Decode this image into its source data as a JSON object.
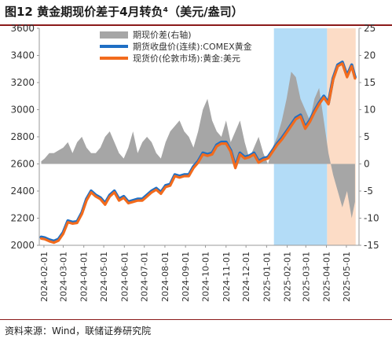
{
  "header": {
    "title": "图12 黄金期现价差于4月转负⁴（美元/盎司）"
  },
  "footer": {
    "source": "资料来源：Wind，联储证券研究院"
  },
  "chart_data": {
    "type": "line",
    "title": "图12 黄金期现价差于4月转负⁴（美元/盎司）",
    "xlabel": "",
    "ylabel": "",
    "x_range": [
      "2024-01-25",
      "2025-05-20"
    ],
    "y_left": {
      "range": [
        2000,
        3600
      ],
      "ticks": [
        2000,
        2200,
        2400,
        2600,
        2800,
        3000,
        3200,
        3400,
        3600
      ]
    },
    "y_right": {
      "range": [
        -15,
        25
      ],
      "ticks": [
        -15,
        -10,
        -5,
        0,
        5,
        10,
        15,
        20,
        25
      ]
    },
    "x_ticks": [
      "2024-02-01",
      "2024-03-01",
      "2024-04-01",
      "2024-05-01",
      "2024-06-01",
      "2024-07-01",
      "2024-08-01",
      "2024-09-01",
      "2024-10-01",
      "2024-11-01",
      "2024-12-01",
      "2025-01-01",
      "2025-02-01",
      "2025-03-01",
      "2025-04-01",
      "2025-05-01"
    ],
    "shaded_regions": [
      {
        "start": "2025-01-12",
        "end": "2025-04-02",
        "color": "#b3dcf7"
      },
      {
        "start": "2025-04-02",
        "end": "2025-05-15",
        "color": "#fcdcc6"
      }
    ],
    "legend_position": "top-center",
    "series": [
      {
        "name": "期现价差(右轴)",
        "type": "area",
        "axis": "right",
        "color": "#a6a6a6",
        "x": [
          "2024-01-28",
          "2024-02-02",
          "2024-02-09",
          "2024-02-16",
          "2024-02-23",
          "2024-03-01",
          "2024-03-08",
          "2024-03-15",
          "2024-03-22",
          "2024-03-29",
          "2024-04-05",
          "2024-04-12",
          "2024-04-19",
          "2024-04-26",
          "2024-05-03",
          "2024-05-10",
          "2024-05-17",
          "2024-05-24",
          "2024-05-31",
          "2024-06-07",
          "2024-06-14",
          "2024-06-21",
          "2024-06-28",
          "2024-07-05",
          "2024-07-12",
          "2024-07-19",
          "2024-07-26",
          "2024-08-02",
          "2024-08-09",
          "2024-08-16",
          "2024-08-23",
          "2024-08-30",
          "2024-09-06",
          "2024-09-13",
          "2024-09-20",
          "2024-09-27",
          "2024-10-04",
          "2024-10-11",
          "2024-10-18",
          "2024-10-25",
          "2024-11-01",
          "2024-11-08",
          "2024-11-15",
          "2024-11-22",
          "2024-11-29",
          "2024-12-06",
          "2024-12-13",
          "2024-12-20",
          "2024-12-27",
          "2025-01-03",
          "2025-01-10",
          "2025-01-17",
          "2025-01-24",
          "2025-01-31",
          "2025-02-07",
          "2025-02-14",
          "2025-02-21",
          "2025-02-28",
          "2025-03-07",
          "2025-03-14",
          "2025-03-21",
          "2025-03-28",
          "2025-04-04",
          "2025-04-11",
          "2025-04-18",
          "2025-04-25",
          "2025-05-02",
          "2025-05-09",
          "2025-05-14"
        ],
        "values": [
          0.5,
          1,
          2,
          2,
          2.5,
          3,
          4,
          2,
          4,
          5,
          3,
          2,
          2,
          3,
          5,
          6,
          4,
          2,
          1,
          3,
          6,
          2,
          4,
          5,
          4,
          2,
          1,
          4,
          6,
          7,
          8,
          6,
          5,
          3,
          6,
          10,
          12,
          8,
          6,
          5,
          8,
          4,
          6,
          8,
          4,
          1,
          3,
          5,
          2,
          0,
          3,
          5,
          8,
          12,
          17,
          16,
          12,
          10,
          8,
          12,
          14,
          8,
          2,
          -2,
          -5,
          -8,
          -5,
          -10,
          -7
        ]
      },
      {
        "name": "期货收盘价(连续):COMEX黄金",
        "type": "line",
        "axis": "left",
        "color": "#1f6fc4",
        "x": [
          "2024-01-28",
          "2024-02-02",
          "2024-02-09",
          "2024-02-16",
          "2024-02-23",
          "2024-03-01",
          "2024-03-08",
          "2024-03-15",
          "2024-03-22",
          "2024-03-29",
          "2024-04-05",
          "2024-04-12",
          "2024-04-19",
          "2024-04-26",
          "2024-05-03",
          "2024-05-10",
          "2024-05-17",
          "2024-05-24",
          "2024-05-31",
          "2024-06-07",
          "2024-06-14",
          "2024-06-21",
          "2024-06-28",
          "2024-07-05",
          "2024-07-12",
          "2024-07-19",
          "2024-07-26",
          "2024-08-02",
          "2024-08-09",
          "2024-08-16",
          "2024-08-23",
          "2024-08-30",
          "2024-09-06",
          "2024-09-13",
          "2024-09-20",
          "2024-09-27",
          "2024-10-04",
          "2024-10-11",
          "2024-10-18",
          "2024-10-25",
          "2024-11-01",
          "2024-11-08",
          "2024-11-15",
          "2024-11-22",
          "2024-11-29",
          "2024-12-06",
          "2024-12-13",
          "2024-12-20",
          "2024-12-27",
          "2025-01-03",
          "2025-01-10",
          "2025-01-17",
          "2025-01-24",
          "2025-01-31",
          "2025-02-07",
          "2025-02-14",
          "2025-02-21",
          "2025-02-28",
          "2025-03-07",
          "2025-03-14",
          "2025-03-21",
          "2025-03-28",
          "2025-04-04",
          "2025-04-11",
          "2025-04-18",
          "2025-04-25",
          "2025-05-02",
          "2025-05-09",
          "2025-05-14"
        ],
        "values": [
          2060,
          2055,
          2040,
          2030,
          2045,
          2095,
          2180,
          2170,
          2175,
          2240,
          2340,
          2400,
          2370,
          2350,
          2310,
          2370,
          2400,
          2340,
          2360,
          2320,
          2330,
          2340,
          2340,
          2370,
          2400,
          2420,
          2390,
          2440,
          2450,
          2520,
          2510,
          2520,
          2520,
          2580,
          2620,
          2680,
          2670,
          2680,
          2740,
          2760,
          2760,
          2700,
          2580,
          2680,
          2650,
          2660,
          2680,
          2620,
          2640,
          2650,
          2700,
          2750,
          2790,
          2840,
          2890,
          2940,
          2960,
          2870,
          2920,
          2990,
          3050,
          3100,
          3050,
          3230,
          3330,
          3350,
          3250,
          3330,
          3240
        ]
      },
      {
        "name": "现货价(伦敦市场):黄金:美元",
        "type": "line",
        "axis": "left",
        "color": "#f26b1d",
        "x": [
          "2024-01-28",
          "2024-02-02",
          "2024-02-09",
          "2024-02-16",
          "2024-02-23",
          "2024-03-01",
          "2024-03-08",
          "2024-03-15",
          "2024-03-22",
          "2024-03-29",
          "2024-04-05",
          "2024-04-12",
          "2024-04-19",
          "2024-04-26",
          "2024-05-03",
          "2024-05-10",
          "2024-05-17",
          "2024-05-24",
          "2024-05-31",
          "2024-06-07",
          "2024-06-14",
          "2024-06-21",
          "2024-06-28",
          "2024-07-05",
          "2024-07-12",
          "2024-07-19",
          "2024-07-26",
          "2024-08-02",
          "2024-08-09",
          "2024-08-16",
          "2024-08-23",
          "2024-08-30",
          "2024-09-06",
          "2024-09-13",
          "2024-09-20",
          "2024-09-27",
          "2024-10-04",
          "2024-10-11",
          "2024-10-18",
          "2024-10-25",
          "2024-11-01",
          "2024-11-08",
          "2024-11-15",
          "2024-11-22",
          "2024-11-29",
          "2024-12-06",
          "2024-12-13",
          "2024-12-20",
          "2024-12-27",
          "2025-01-03",
          "2025-01-10",
          "2025-01-17",
          "2025-01-24",
          "2025-01-31",
          "2025-02-07",
          "2025-02-14",
          "2025-02-21",
          "2025-02-28",
          "2025-03-07",
          "2025-03-14",
          "2025-03-21",
          "2025-03-28",
          "2025-04-04",
          "2025-04-11",
          "2025-04-18",
          "2025-04-25",
          "2025-05-02",
          "2025-05-09",
          "2025-05-14"
        ],
        "values": [
          2050,
          2045,
          2030,
          2020,
          2035,
          2085,
          2170,
          2160,
          2165,
          2230,
          2330,
          2390,
          2360,
          2340,
          2300,
          2360,
          2390,
          2330,
          2350,
          2310,
          2320,
          2330,
          2330,
          2360,
          2390,
          2410,
          2380,
          2430,
          2440,
          2510,
          2500,
          2510,
          2510,
          2570,
          2610,
          2670,
          2660,
          2670,
          2730,
          2750,
          2750,
          2690,
          2570,
          2670,
          2640,
          2650,
          2670,
          2610,
          2630,
          2640,
          2690,
          2740,
          2780,
          2830,
          2880,
          2930,
          2950,
          2860,
          2910,
          2980,
          3040,
          3090,
          3040,
          3220,
          3320,
          3340,
          3240,
          3320,
          3230
        ]
      }
    ]
  }
}
